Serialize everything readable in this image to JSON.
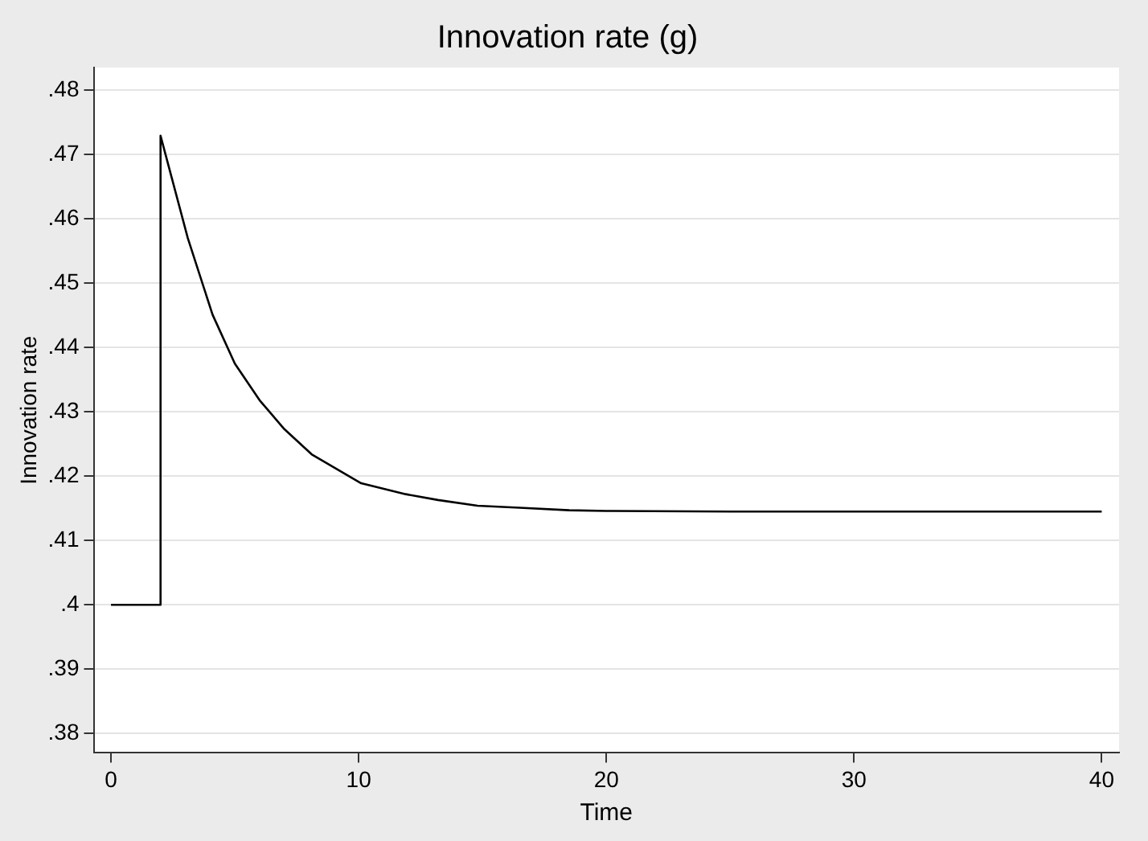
{
  "chart_data": {
    "type": "line",
    "title": "Innovation rate (g)",
    "xlabel": "Time",
    "ylabel": "Innovation rate",
    "series": [
      {
        "color": "#000000",
        "x": [
          0,
          2,
          2,
          3.1,
          4.1,
          5,
          6,
          7,
          8.1,
          10.1,
          11.9,
          13.2,
          14.8,
          16.5,
          18.5,
          20,
          25,
          30,
          35,
          40
        ],
        "values": [
          0.4,
          0.4,
          0.4729,
          0.457,
          0.4451,
          0.4375,
          0.4318,
          0.4273,
          0.4234,
          0.4189,
          0.4172,
          0.4163,
          0.4154,
          0.4151,
          0.4147,
          0.4146,
          0.4145,
          0.4145,
          0.4145,
          0.4145
        ]
      }
    ],
    "xlim": [
      -0.7,
      40.7
    ],
    "xticks": [
      0,
      10,
      20,
      30,
      40
    ],
    "ylim": [
      0.377,
      0.4835
    ],
    "yticks": [
      {
        "value": 0.38,
        "label": ".38"
      },
      {
        "value": 0.39,
        "label": ".39"
      },
      {
        "value": 0.4,
        "label": ".4"
      },
      {
        "value": 0.41,
        "label": ".41"
      },
      {
        "value": 0.42,
        "label": ".42"
      },
      {
        "value": 0.43,
        "label": ".43"
      },
      {
        "value": 0.44,
        "label": ".44"
      },
      {
        "value": 0.45,
        "label": ".45"
      },
      {
        "value": 0.46,
        "label": ".46"
      },
      {
        "value": 0.47,
        "label": ".47"
      },
      {
        "value": 0.48,
        "label": ".48"
      }
    ],
    "grid": "y",
    "marker": "none",
    "line_style": "solid",
    "legend": false
  }
}
